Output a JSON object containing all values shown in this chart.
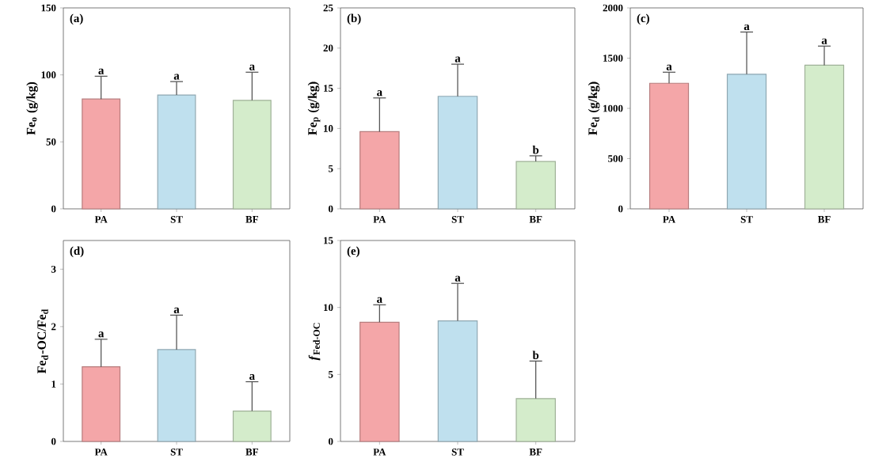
{
  "chart_data": [
    {
      "type": "bar",
      "title": "(a)",
      "ylabel": "Fe$_{o}$ (g/kg)",
      "categories": [
        "PA",
        "ST",
        "BF"
      ],
      "values": [
        82,
        85,
        81
      ],
      "colors": [
        "#f4a6a8",
        "#bfe0ee",
        "#d4eccb"
      ],
      "errors": [
        [
          82,
          99
        ],
        [
          85,
          95
        ],
        [
          81,
          102
        ]
      ],
      "ylim": [
        0,
        150
      ],
      "yticks": [
        0,
        50,
        100,
        150
      ],
      "annotations": [
        {
          "text": "a",
          "x": "PA",
          "y": 99
        },
        {
          "text": "a",
          "x": "ST",
          "y": 95
        },
        {
          "text": "a",
          "x": "BF",
          "y": 102
        }
      ]
    },
    {
      "type": "bar",
      "title": "(b)",
      "ylabel": "Fe$_{p}$ (g/kg)",
      "categories": [
        "PA",
        "ST",
        "BF"
      ],
      "values": [
        9.6,
        14,
        5.9
      ],
      "colors": [
        "#f4a6a8",
        "#bfe0ee",
        "#d4eccb"
      ],
      "errors": [
        [
          9.6,
          13.8
        ],
        [
          14,
          18
        ],
        [
          5.9,
          6.6
        ]
      ],
      "ylim": [
        0,
        25
      ],
      "yticks": [
        0,
        5,
        10,
        15,
        20,
        25
      ],
      "annotations": [
        {
          "text": "a",
          "x": "PA",
          "y": 13.8
        },
        {
          "text": "a",
          "x": "ST",
          "y": 18
        },
        {
          "text": "b",
          "x": "BF",
          "y": 6.6
        }
      ]
    },
    {
      "type": "bar",
      "title": "(c)",
      "ylabel": "Fe$_{d}$ (g/kg)",
      "categories": [
        "PA",
        "ST",
        "BF"
      ],
      "values": [
        1250,
        1340,
        1430
      ],
      "colors": [
        "#f4a6a8",
        "#bfe0ee",
        "#d4eccb"
      ],
      "errors": [
        [
          1250,
          1360
        ],
        [
          1340,
          1760
        ],
        [
          1430,
          1620
        ]
      ],
      "ylim": [
        0,
        2000
      ],
      "yticks": [
        0,
        500,
        1000,
        1500,
        2000
      ],
      "annotations": [
        {
          "text": "a",
          "x": "PA",
          "y": 1360
        },
        {
          "text": "a",
          "x": "ST",
          "y": 1760
        },
        {
          "text": "a",
          "x": "BF",
          "y": 1620
        }
      ]
    },
    {
      "type": "bar",
      "title": "(d)",
      "ylabel": "Fe$_{d}$-OC/Fe$_{d}$",
      "categories": [
        "PA",
        "ST",
        "BF"
      ],
      "values": [
        1.3,
        1.6,
        0.53
      ],
      "colors": [
        "#f4a6a8",
        "#bfe0ee",
        "#d4eccb"
      ],
      "errors": [
        [
          1.3,
          1.78
        ],
        [
          1.6,
          2.2
        ],
        [
          0.53,
          1.04
        ]
      ],
      "ylim": [
        0,
        3.5
      ],
      "yticks": [
        0,
        1,
        2,
        3
      ],
      "annotations": [
        {
          "text": "a",
          "x": "PA",
          "y": 1.78
        },
        {
          "text": "a",
          "x": "ST",
          "y": 2.2
        },
        {
          "text": "a",
          "x": "BF",
          "y": 1.04
        }
      ]
    },
    {
      "type": "bar",
      "title": "(e)",
      "ylabel": "*f*$_{Fed-OC}$",
      "categories": [
        "PA",
        "ST",
        "BF"
      ],
      "values": [
        8.9,
        9.0,
        3.2
      ],
      "colors": [
        "#f4a6a8",
        "#bfe0ee",
        "#d4eccb"
      ],
      "errors": [
        [
          8.9,
          10.2
        ],
        [
          9.0,
          11.8
        ],
        [
          3.2,
          6.0
        ]
      ],
      "ylim": [
        0,
        15
      ],
      "yticks": [
        0,
        5,
        10,
        15
      ],
      "annotations": [
        {
          "text": "a",
          "x": "PA",
          "y": 10.2
        },
        {
          "text": "a",
          "x": "ST",
          "y": 11.8
        },
        {
          "text": "b",
          "x": "BF",
          "y": 6.0
        }
      ]
    }
  ]
}
